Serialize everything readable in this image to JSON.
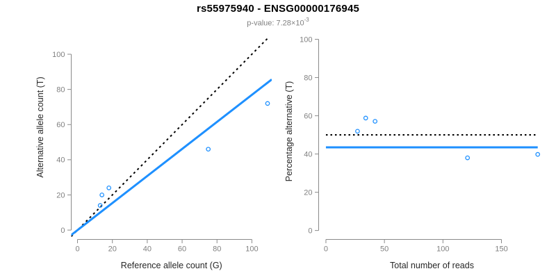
{
  "header": {
    "title": "rs55975940 - ENSG00000176945",
    "p_prefix": "p-value: 7.28×10",
    "p_exponent": "-3"
  },
  "colors": {
    "background": "#ffffff",
    "title_text": "#000000",
    "subtitle_text": "#808080",
    "axis_line": "#8a8a8a",
    "tick_label": "#808080",
    "axis_title": "#262626",
    "accent_blue": "#1e90ff",
    "reference_line": "#000000"
  },
  "chart_data": [
    {
      "type": "scatter",
      "panel": "left",
      "xlabel": "Reference allele count (G)",
      "ylabel": "Alternative allele count (T)",
      "xticks": [
        0,
        20,
        40,
        60,
        80,
        100
      ],
      "yticks": [
        0,
        20,
        40,
        60,
        80,
        100
      ],
      "xlim": [
        -3.6,
        111.4
      ],
      "ylim": [
        -5.5,
        109.1
      ],
      "grid": false,
      "legend": "none",
      "points": [
        [
          13,
          14
        ],
        [
          14,
          20
        ],
        [
          18,
          24
        ],
        [
          75,
          46
        ],
        [
          109,
          72
        ]
      ],
      "lines": [
        {
          "name": "identity-line",
          "style": "dashed",
          "color_key": "reference_line",
          "slope": 1,
          "intercept": 0
        },
        {
          "name": "regression-line",
          "style": "solid",
          "color_key": "accent_blue",
          "slope": 0.769,
          "intercept": 0
        }
      ]
    },
    {
      "type": "scatter",
      "panel": "right",
      "xlabel": "Total number of reads",
      "ylabel": "Percentage alternative (T)",
      "xticks": [
        0,
        50,
        100,
        150
      ],
      "yticks": [
        0,
        20,
        40,
        60,
        80,
        100
      ],
      "xlim": [
        -7.1,
        188.3
      ],
      "ylim": [
        -4.5,
        104.2
      ],
      "grid": false,
      "legend": "none",
      "points": [
        [
          27,
          51.9
        ],
        [
          34,
          58.8
        ],
        [
          42,
          57.1
        ],
        [
          121,
          38.0
        ],
        [
          181,
          39.8
        ]
      ],
      "lines": [
        {
          "name": "fifty-percent-line",
          "style": "dotted",
          "color_key": "reference_line",
          "h": 50,
          "x_range": [
            0,
            181
          ]
        },
        {
          "name": "mean-percentage-line",
          "style": "solid",
          "color_key": "accent_blue",
          "h": 43.5,
          "x_range": [
            0,
            181
          ]
        }
      ]
    }
  ]
}
